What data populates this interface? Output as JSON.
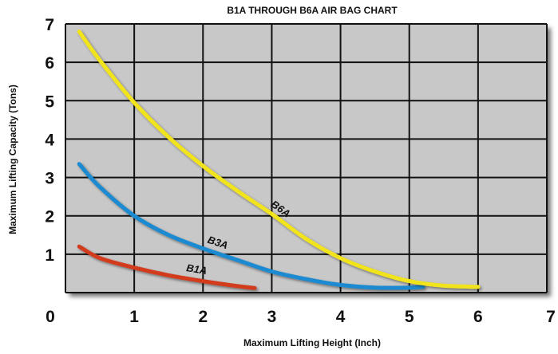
{
  "chart_data": {
    "type": "line",
    "title": "B1A THROUGH B6A AIR BAG CHART",
    "xlabel": "Maximum Lifting Height (Inch)",
    "ylabel": "Maximum Lifting Capacity (Tons)",
    "xlim": [
      0,
      7
    ],
    "ylim": [
      0,
      7
    ],
    "x_ticks": [
      "0",
      "1",
      "2",
      "3",
      "4",
      "5",
      "6",
      "7"
    ],
    "y_ticks": [
      "1",
      "2",
      "3",
      "4",
      "5",
      "6",
      "7"
    ],
    "grid": true,
    "plot_background": "#c8c8c8",
    "gridline_color": "#111111",
    "series": [
      {
        "name": "B1A",
        "color": "#d23a1c",
        "x": [
          0.2,
          0.5,
          1.0,
          1.5,
          2.0,
          2.5,
          2.75
        ],
        "y": [
          1.2,
          0.9,
          0.65,
          0.45,
          0.3,
          0.17,
          0.12
        ]
      },
      {
        "name": "B3A",
        "color": "#1a8ad0",
        "x": [
          0.2,
          0.5,
          1.0,
          1.5,
          2.0,
          2.5,
          3.0,
          3.5,
          4.0,
          4.5,
          5.0,
          5.2
        ],
        "y": [
          3.35,
          2.75,
          2.0,
          1.5,
          1.15,
          0.85,
          0.55,
          0.35,
          0.2,
          0.13,
          0.13,
          0.15
        ]
      },
      {
        "name": "B6A",
        "color": "#f2e41c",
        "x": [
          0.2,
          0.5,
          1.0,
          1.5,
          2.0,
          2.5,
          3.0,
          3.5,
          4.0,
          4.5,
          5.0,
          5.5,
          6.0
        ],
        "y": [
          6.8,
          6.05,
          4.95,
          4.05,
          3.3,
          2.65,
          2.05,
          1.4,
          0.9,
          0.55,
          0.3,
          0.18,
          0.15
        ]
      }
    ]
  }
}
